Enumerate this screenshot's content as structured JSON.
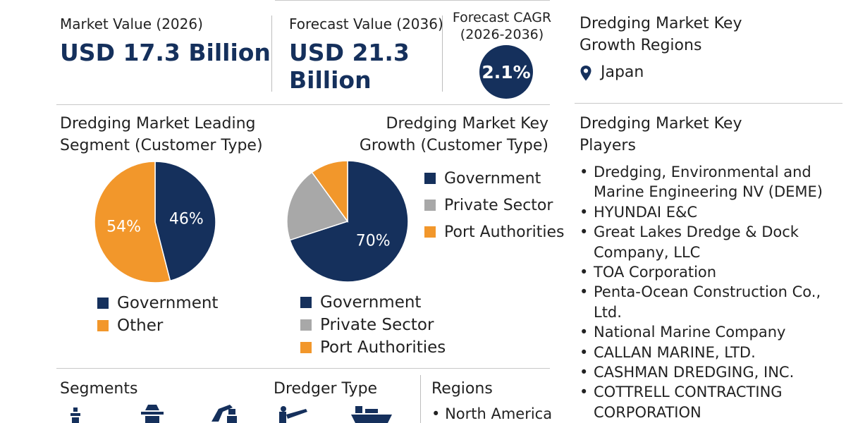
{
  "kpis": {
    "market_value_label": "Market Value (2026)",
    "market_value": "USD 17.3 Billion",
    "forecast_value_label": "Forecast Value (2036)",
    "forecast_value_line1": "USD 21.3",
    "forecast_value_line2": "Billion",
    "cagr_label_line1": "Forecast CAGR",
    "cagr_label_line2": "(2026-2036)",
    "cagr_value": "2.1%"
  },
  "growth_regions": {
    "title_line1": "Dredging Market Key",
    "title_line2": "Growth Regions",
    "region": "Japan",
    "icon": "location-pin-icon"
  },
  "key_players": {
    "title_line1": "Dredging Market Key",
    "title_line2": "Players",
    "items": [
      "Dredging, Environmental and Marine Engineering NV (DEME)",
      "HYUNDAI E&C",
      "Great Lakes Dredge & Dock Company, LLC",
      "TOA Corporation",
      "Penta-Ocean Construction Co., Ltd.",
      "National Marine Company",
      "CALLAN MARINE, LTD.",
      "CASHMAN DREDGING, INC.",
      "COTTRELL CONTRACTING CORPORATION"
    ]
  },
  "bottom": {
    "segments_label": "Segments",
    "dredger_type_label": "Dredger Type",
    "regions_label": "Regions",
    "regions_first": "North America"
  },
  "colors": {
    "navy": "#15305c",
    "orange": "#f2972b",
    "gray": "#a8a8a8"
  },
  "chart_data": [
    {
      "type": "pie",
      "title_line1": "Dredging Market Leading",
      "title_line2": "Segment (Customer Type)",
      "slices": [
        {
          "label": "Government",
          "value": 46,
          "display": "46%",
          "color": "#15305c"
        },
        {
          "label": "Other",
          "value": 54,
          "display": "54%",
          "color": "#f2972b"
        }
      ],
      "legend_placement": "bottom"
    },
    {
      "type": "pie",
      "title_line1": "Dredging Market Key",
      "title_line2": "Growth (Customer Type)",
      "slices": [
        {
          "label": "Government",
          "value": 70,
          "display": "70%",
          "color": "#15305c"
        },
        {
          "label": "Private Sector",
          "value": 20,
          "display": "",
          "color": "#a8a8a8"
        },
        {
          "label": "Port Authorities",
          "value": 10,
          "display": "",
          "color": "#f2972b"
        }
      ],
      "legend_placement": "right-and-bottom"
    }
  ]
}
